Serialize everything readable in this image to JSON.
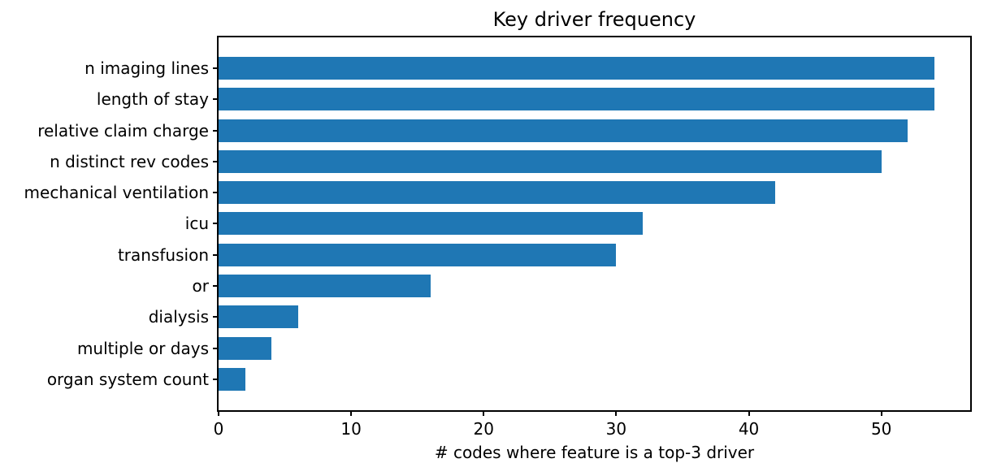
{
  "chart_data": {
    "type": "bar",
    "orientation": "horizontal",
    "title": "Key driver frequency",
    "xlabel": "# codes where feature is a top-3 driver",
    "ylabel": "",
    "categories": [
      "n imaging lines",
      "length of stay",
      "relative claim charge",
      "n distinct rev codes",
      "mechanical ventilation",
      "icu",
      "transfusion",
      "or",
      "dialysis",
      "multiple or days",
      "organ system count"
    ],
    "values": [
      54,
      54,
      52,
      50,
      42,
      32,
      30,
      16,
      6,
      4,
      2
    ],
    "xlim": [
      0,
      56.7
    ],
    "xticks": [
      0,
      10,
      20,
      30,
      40,
      50
    ],
    "bar_color": "#1f77b4",
    "axis_color": "#000000",
    "background_color": "#ffffff",
    "grid": false,
    "legend": "none"
  }
}
